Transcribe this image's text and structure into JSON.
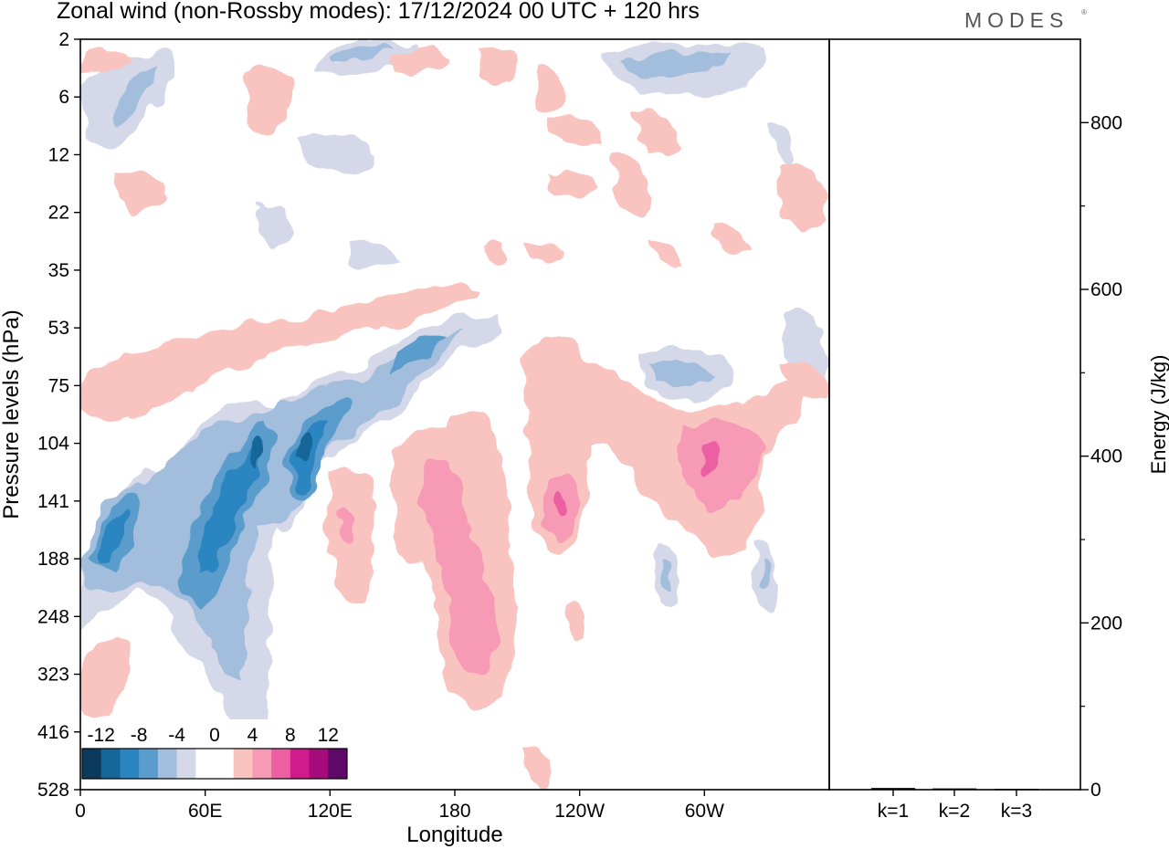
{
  "page": {
    "title": "Zonal wind (non-Rossby modes):  17/12/2024  00 UTC  + 120 hrs",
    "brand": "MODES",
    "brand_mark": "®"
  },
  "chart_data": [
    {
      "type": "heatmap",
      "title": "Zonal wind (non-Rossby modes):  17/12/2024  00 UTC  + 120 hrs",
      "xlabel": "Longitude",
      "ylabel": "Pressure levels (hPa)",
      "x_ticks": [
        "0",
        "60E",
        "120E",
        "180",
        "120W",
        "60W"
      ],
      "x_tick_values": [
        0,
        60,
        120,
        180,
        240,
        300
      ],
      "xlim": [
        0,
        360
      ],
      "y_ticks": [
        "2",
        "6",
        "12",
        "22",
        "35",
        "53",
        "75",
        "104",
        "141",
        "188",
        "248",
        "323",
        "416",
        "528"
      ],
      "y_scale": "pressure levels, top to bottom",
      "colorbar": {
        "tick_labels": [
          "-12",
          "-8",
          "-4",
          "0",
          "4",
          "8",
          "12"
        ],
        "levels": [
          -14,
          -12,
          -10,
          -8,
          -6,
          -4,
          -2,
          0,
          2,
          4,
          6,
          8,
          10,
          12,
          14
        ],
        "colors": [
          "#0b3a5c",
          "#15669a",
          "#2a85c0",
          "#5a9ccc",
          "#a3bedd",
          "#d4d8e8",
          "#ffffff",
          "#ffffff",
          "#f9c4c0",
          "#f69ab6",
          "#ec5fa2",
          "#cf1b8c",
          "#a60b7c",
          "#5e0868"
        ]
      },
      "regions": [
        {
          "name": "jet-core-negative",
          "lon": [
            5,
            125
          ],
          "level": [
            "75",
            "248"
          ],
          "min_value": -12
        },
        {
          "name": "tilted-negative-band",
          "lon": [
            40,
            190
          ],
          "level": [
            "53",
            "141"
          ],
          "min_value": -8
        },
        {
          "name": "positive-180",
          "lon": [
            150,
            200
          ],
          "level": [
            "104",
            "416"
          ],
          "max_value": 8
        },
        {
          "name": "positive-115W",
          "lon": [
            220,
            260
          ],
          "level": [
            "104",
            "248"
          ],
          "max_value": 10
        },
        {
          "name": "positive-60W",
          "lon": [
            285,
            330
          ],
          "level": [
            "75",
            "188"
          ],
          "max_value": 10
        },
        {
          "name": "negative-upper-left",
          "lon": [
            10,
            50
          ],
          "level": [
            "2",
            "12"
          ],
          "min_value": -6
        }
      ]
    },
    {
      "type": "bar",
      "ylabel": "Energy (J/kg)",
      "categories": [
        "k=1",
        "k=2",
        "k=3"
      ],
      "values": [
        2,
        1.5,
        1
      ],
      "ylim": [
        0,
        900
      ],
      "y_ticks": [
        "0",
        "200",
        "400",
        "600",
        "800"
      ],
      "y_tick_values": [
        0,
        200,
        400,
        600,
        800
      ]
    }
  ]
}
